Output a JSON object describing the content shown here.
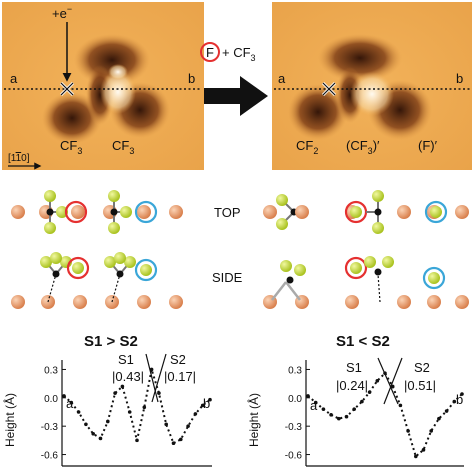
{
  "stm": {
    "left": {
      "electron_label": "+e",
      "electron_sup": "−",
      "point_a": "a",
      "point_b": "b",
      "molecules": [
        "CF",
        "CF"
      ],
      "molecule_subs": [
        "3",
        "3"
      ],
      "direction_label": "[1",
      "direction_bar": "1",
      "direction_end": "0]"
    },
    "reaction": {
      "circled": "F",
      "text": "+ CF",
      "sub": "3"
    },
    "right": {
      "point_a": "a",
      "point_b": "b",
      "products": [
        {
          "text": "CF",
          "sub": "2",
          "prime": ""
        },
        {
          "text": "(CF",
          "sub": "3",
          "prime": ")′"
        },
        {
          "text": "(F)",
          "sub": "",
          "prime": "′"
        }
      ]
    }
  },
  "models": {
    "top_label": "TOP",
    "side_label": "SIDE",
    "colors": {
      "copper": "#e89a6a",
      "fluorine": "#c7da3a",
      "carbon": "#111111",
      "red_ring": "#e53030",
      "blue_ring": "#3aa6d8"
    }
  },
  "chart_data": [
    {
      "type": "line",
      "title": "S1 > S2",
      "ylabel": "Height (Å)",
      "ylim": [
        -0.7,
        0.4
      ],
      "yticks": [
        "0.3",
        "0.0",
        "-0.3",
        "-0.6"
      ],
      "x": [
        0,
        0.05,
        0.1,
        0.15,
        0.2,
        0.25,
        0.3,
        0.35,
        0.4,
        0.45,
        0.5,
        0.55,
        0.6,
        0.65,
        0.7,
        0.75,
        0.8,
        0.85,
        0.9,
        0.95,
        1.0
      ],
      "y": [
        0.02,
        -0.05,
        -0.15,
        -0.28,
        -0.38,
        -0.43,
        -0.25,
        0.05,
        0.12,
        -0.15,
        -0.45,
        -0.1,
        0.3,
        0.05,
        -0.28,
        -0.48,
        -0.44,
        -0.3,
        -0.17,
        -0.08,
        -0.02
      ],
      "annotations": {
        "S1_label": "S1",
        "S1_value": "|0.43|",
        "S2_label": "S2",
        "S2_value": "|0.17|",
        "start": "a",
        "end": "b"
      }
    },
    {
      "type": "line",
      "title": "S1 < S2",
      "ylabel": "Height (Å)",
      "ylim": [
        -0.7,
        0.4
      ],
      "yticks": [
        "0.3",
        "0.0",
        "-0.3",
        "-0.6"
      ],
      "x": [
        0,
        0.05,
        0.1,
        0.15,
        0.2,
        0.25,
        0.3,
        0.35,
        0.4,
        0.45,
        0.5,
        0.55,
        0.6,
        0.65,
        0.7,
        0.75,
        0.8,
        0.85,
        0.9,
        0.95,
        1.0
      ],
      "y": [
        0.02,
        -0.05,
        -0.12,
        -0.18,
        -0.22,
        -0.2,
        -0.12,
        -0.04,
        0.06,
        0.18,
        0.26,
        0.12,
        -0.08,
        -0.35,
        -0.62,
        -0.55,
        -0.35,
        -0.22,
        -0.14,
        -0.04,
        0.04
      ],
      "annotations": {
        "S1_label": "S1",
        "S1_value": "|0.24|",
        "S2_label": "S2",
        "S2_value": "|0.51|",
        "start": "a",
        "end": "b"
      }
    }
  ]
}
